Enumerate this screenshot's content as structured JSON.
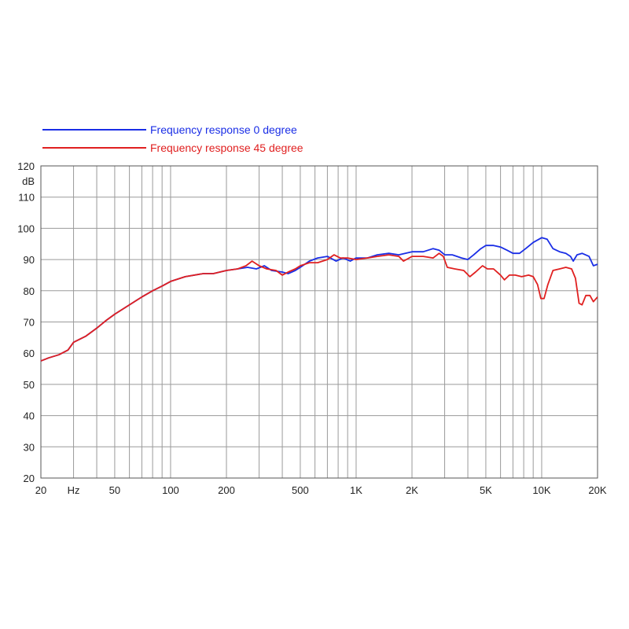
{
  "chart_data": {
    "type": "line",
    "x_scale": "log",
    "xlim": [
      20,
      20000
    ],
    "ylim": [
      20,
      120
    ],
    "grid": true,
    "legend_position": "top-left",
    "y_unit": "dB",
    "x_unit": "Hz",
    "x_tick_labels": [
      {
        "value": 20,
        "label": "20"
      },
      {
        "value": 30,
        "label": "Hz"
      },
      {
        "value": 50,
        "label": "50"
      },
      {
        "value": 100,
        "label": "100"
      },
      {
        "value": 200,
        "label": "200"
      },
      {
        "value": 500,
        "label": "500"
      },
      {
        "value": 1000,
        "label": "1K"
      },
      {
        "value": 2000,
        "label": "2K"
      },
      {
        "value": 5000,
        "label": "5K"
      },
      {
        "value": 10000,
        "label": "10K"
      },
      {
        "value": 20000,
        "label": "20K"
      }
    ],
    "y_ticks": [
      20,
      30,
      40,
      50,
      60,
      70,
      80,
      90,
      100,
      110,
      120
    ],
    "series": [
      {
        "name": "Frequency response 0 degree",
        "color": "#1a2ee6",
        "points": [
          [
            20,
            57.5
          ],
          [
            22,
            58.5
          ],
          [
            25,
            59.5
          ],
          [
            28,
            61
          ],
          [
            30,
            63.5
          ],
          [
            35,
            65.5
          ],
          [
            40,
            68
          ],
          [
            45,
            70.5
          ],
          [
            50,
            72.5
          ],
          [
            60,
            75.5
          ],
          [
            70,
            78
          ],
          [
            80,
            80
          ],
          [
            90,
            81.5
          ],
          [
            100,
            83
          ],
          [
            120,
            84.5
          ],
          [
            150,
            85.5
          ],
          [
            170,
            85.5
          ],
          [
            200,
            86.5
          ],
          [
            230,
            87
          ],
          [
            260,
            87.5
          ],
          [
            290,
            87
          ],
          [
            320,
            88
          ],
          [
            350,
            86.5
          ],
          [
            400,
            86
          ],
          [
            430,
            85.5
          ],
          [
            470,
            86.5
          ],
          [
            500,
            87.5
          ],
          [
            560,
            89.5
          ],
          [
            620,
            90.5
          ],
          [
            700,
            91
          ],
          [
            780,
            89.5
          ],
          [
            850,
            90.5
          ],
          [
            930,
            89.5
          ],
          [
            1000,
            90.5
          ],
          [
            1150,
            90.5
          ],
          [
            1300,
            91.5
          ],
          [
            1500,
            92
          ],
          [
            1700,
            91.5
          ],
          [
            2000,
            92.5
          ],
          [
            2300,
            92.5
          ],
          [
            2600,
            93.5
          ],
          [
            2800,
            93
          ],
          [
            3000,
            91.5
          ],
          [
            3300,
            91.5
          ],
          [
            3700,
            90.5
          ],
          [
            4000,
            90
          ],
          [
            4300,
            91.5
          ],
          [
            4700,
            93.5
          ],
          [
            5000,
            94.5
          ],
          [
            5500,
            94.5
          ],
          [
            6000,
            94
          ],
          [
            6500,
            93
          ],
          [
            7000,
            92
          ],
          [
            7600,
            92
          ],
          [
            8200,
            93.5
          ],
          [
            9000,
            95.5
          ],
          [
            10000,
            97
          ],
          [
            10700,
            96.5
          ],
          [
            11500,
            93.5
          ],
          [
            12500,
            92.5
          ],
          [
            13500,
            92
          ],
          [
            14300,
            91
          ],
          [
            14800,
            89.5
          ],
          [
            15500,
            91.5
          ],
          [
            16500,
            92
          ],
          [
            18000,
            91
          ],
          [
            19000,
            88
          ],
          [
            20000,
            88.5
          ]
        ]
      },
      {
        "name": "Frequency response 45 degree",
        "color": "#e02020",
        "points": [
          [
            20,
            57.5
          ],
          [
            22,
            58.5
          ],
          [
            25,
            59.5
          ],
          [
            28,
            61
          ],
          [
            30,
            63.5
          ],
          [
            35,
            65.5
          ],
          [
            40,
            68
          ],
          [
            45,
            70.5
          ],
          [
            50,
            72.5
          ],
          [
            60,
            75.5
          ],
          [
            70,
            78
          ],
          [
            80,
            80
          ],
          [
            90,
            81.5
          ],
          [
            100,
            83
          ],
          [
            120,
            84.5
          ],
          [
            150,
            85.5
          ],
          [
            170,
            85.5
          ],
          [
            200,
            86.5
          ],
          [
            230,
            87
          ],
          [
            255,
            88
          ],
          [
            275,
            89.5
          ],
          [
            300,
            88
          ],
          [
            330,
            87
          ],
          [
            370,
            86.5
          ],
          [
            400,
            85
          ],
          [
            430,
            86
          ],
          [
            470,
            87
          ],
          [
            500,
            88
          ],
          [
            560,
            89
          ],
          [
            620,
            89
          ],
          [
            700,
            90
          ],
          [
            760,
            91.5
          ],
          [
            820,
            90.5
          ],
          [
            900,
            90.5
          ],
          [
            1000,
            90
          ],
          [
            1150,
            90.5
          ],
          [
            1300,
            91
          ],
          [
            1500,
            91.5
          ],
          [
            1700,
            91
          ],
          [
            1800,
            89.5
          ],
          [
            2000,
            91
          ],
          [
            2300,
            91
          ],
          [
            2600,
            90.5
          ],
          [
            2800,
            92
          ],
          [
            2950,
            91
          ],
          [
            3100,
            87.5
          ],
          [
            3400,
            87
          ],
          [
            3800,
            86.5
          ],
          [
            4100,
            84.5
          ],
          [
            4400,
            86
          ],
          [
            4800,
            88
          ],
          [
            5100,
            87
          ],
          [
            5500,
            87
          ],
          [
            6000,
            85
          ],
          [
            6300,
            83.5
          ],
          [
            6700,
            85
          ],
          [
            7200,
            85
          ],
          [
            7800,
            84.5
          ],
          [
            8500,
            85
          ],
          [
            9000,
            84.5
          ],
          [
            9500,
            82
          ],
          [
            9900,
            77.5
          ],
          [
            10300,
            77.5
          ],
          [
            10800,
            82
          ],
          [
            11500,
            86.5
          ],
          [
            12500,
            87
          ],
          [
            13500,
            87.5
          ],
          [
            14500,
            87
          ],
          [
            15200,
            84
          ],
          [
            15900,
            76
          ],
          [
            16500,
            75.5
          ],
          [
            17300,
            78.5
          ],
          [
            18200,
            78.5
          ],
          [
            19000,
            76.5
          ],
          [
            20000,
            78
          ]
        ]
      }
    ]
  }
}
